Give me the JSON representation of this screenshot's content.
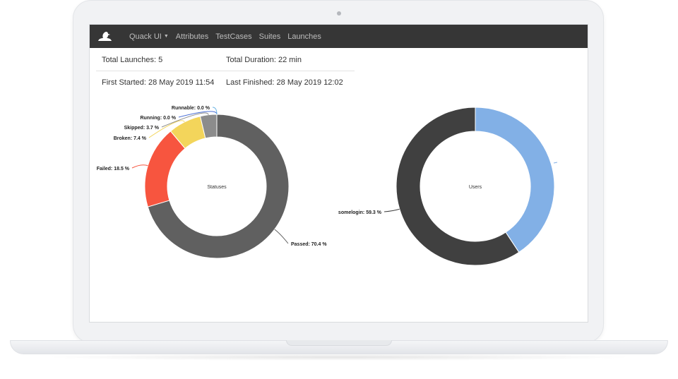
{
  "navbar": {
    "brand_icon": "duck-logo-icon",
    "menu": [
      {
        "label": "Quack UI",
        "dropdown": true
      },
      {
        "label": "Attributes"
      },
      {
        "label": "TestCases"
      },
      {
        "label": "Suites"
      },
      {
        "label": "Launches"
      }
    ]
  },
  "stats": {
    "total_launches": "Total Launches: 5",
    "total_duration": "Total Duration: 22 min",
    "first_started": "First Started: 28 May 2019 11:54",
    "last_finished": "Last Finished: 28 May 2019 12:02"
  },
  "chart_data": [
    {
      "type": "pie",
      "title": "Statuses",
      "series": [
        {
          "name": "Passed",
          "value": 70.4,
          "label": "Passed: 70.4 %",
          "color": "#606060"
        },
        {
          "name": "Failed",
          "value": 18.5,
          "label": "Failed: 18.5 %",
          "color": "#f7553f"
        },
        {
          "name": "Broken",
          "value": 7.4,
          "label": "Broken: 7.4 %",
          "color": "#f3d55b"
        },
        {
          "name": "Skipped",
          "value": 3.7,
          "label": "Skipped: 3.7 %",
          "color": "#8c8c8c"
        },
        {
          "name": "Running",
          "value": 0.0,
          "label": "Running: 0.0 %",
          "color": "#4a6fd6"
        },
        {
          "name": "Runnable",
          "value": 0.0,
          "label": "Runnable: 0.0 %",
          "color": "#6cb4e3"
        }
      ]
    },
    {
      "type": "pie",
      "title": "Users",
      "series": [
        {
          "name": "",
          "value": 40.7,
          "label": "",
          "color": "#82b0e6"
        },
        {
          "name": "somelogin",
          "value": 59.3,
          "label": "somelogin: 59.3 %",
          "color": "#404040"
        }
      ]
    }
  ]
}
